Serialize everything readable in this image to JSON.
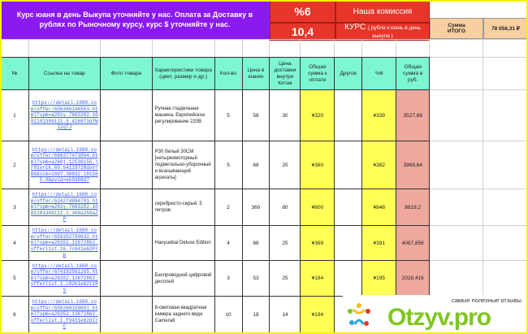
{
  "banner": {
    "text": "Курс юаня в день Выкупа уточняйте у нас. Оплата за Доставку в рублях по Рыночному курсу, курс $ уточняйте у нас.",
    "commission_value": "%6",
    "commission_label": "Наша комиссия",
    "rate_value": "10,4",
    "rate_label": "КУРС",
    "rate_note": "( рубля к юань в день выкупа )",
    "total_label": "Сумма ИТОГО",
    "total_value": "78 056,31 ₽"
  },
  "headers": [
    "№",
    "Ссылка на товар",
    "Фото товара",
    "Характеристики товара (цвет, размер и др.)",
    "Кол-во",
    "Цена в юанях",
    "Цена доставки внутри Китая",
    "Общая сумма к оплате",
    "Другое",
    "%6",
    "Общая сумма в руб."
  ],
  "rows": [
    {
      "n": "1",
      "link": "https://detail.1688.com/offer/658386146503.html?spm=a261y.7663282.1081181309111.5.426873d7WI2qTJ",
      "desc": "Ручная гладильная машина. Европейское регулирование 220В",
      "qty": "5",
      "price": "58",
      "ship": "30",
      "total": "¥320",
      "other": "",
      "fee": "¥339",
      "rub": "3527,68"
    },
    {
      "n": "2",
      "link": "https://detail.1688.com/offer/668377473894.html?spm=a260j.12536155.jr91vrik.60.54119728doVTBG&scm=1007.30832.181565.0&pvid=eb9308d7",
      "desc": "P30 белый 30CM [четырехмоторный подметально-уборочный и всасывающий агрегаты]",
      "qty": "5",
      "price": "68",
      "ship": "20",
      "total": "¥360",
      "other": "",
      "fee": "¥382",
      "rub": "3968,64"
    },
    {
      "n": "3",
      "link": "https://detail.1688.com/offer/634274894791.html?spm=a261y.7663282.1081181309111.1.308a258aZP",
      "desc": "серебристо-серый, 5 литров",
      "qty": "2",
      "price": "360",
      "ship": "80",
      "total": "¥800",
      "other": "",
      "fee": "¥848",
      "rub": "8819,2"
    },
    {
      "n": "4",
      "link": "https://detail.1688.com/offer/659352790632.html?spm=a26352.13672862.offerlist.16.7c641e62Prp",
      "desc": "Haoyuebai Deluxe Edition",
      "qty": "4",
      "price": "86",
      "ship": "25",
      "total": "¥369",
      "other": "",
      "fee": "¥391",
      "rub": "4067,856"
    },
    {
      "n": "5",
      "link": "https://detail.1688.com/offer/674192561265.html?spm=a26352.13672862.offerlist.1.c82b1e6211RS",
      "desc": "Беспроводной цифровой дисплей",
      "qty": "3",
      "price": "53",
      "ship": "25",
      "total": "¥184",
      "other": "",
      "fee": "¥195",
      "rub": "2028,416"
    },
    {
      "n": "6",
      "link": "https://detail.1688.com/offer/650268159651.html?spm=a26352.13672862.offerlist.1.f9431e62dIrC",
      "desc": "8-световая квадратная камера заднего вида Camera8",
      "qty": "10",
      "price": "18",
      "ship": "14",
      "total": "¥194",
      "other": "",
      "fee": "",
      "rub": ""
    }
  ],
  "watermark": {
    "tagline": "самые полезные отзывы",
    "brand": "Otzyv.pro"
  },
  "colors": {
    "banner": "#8a1af0",
    "red": "#e8352a",
    "header": "#7df7d2",
    "yellow": "#ffff55",
    "pink": "#eea89e",
    "peach": "#f7cfa0"
  }
}
